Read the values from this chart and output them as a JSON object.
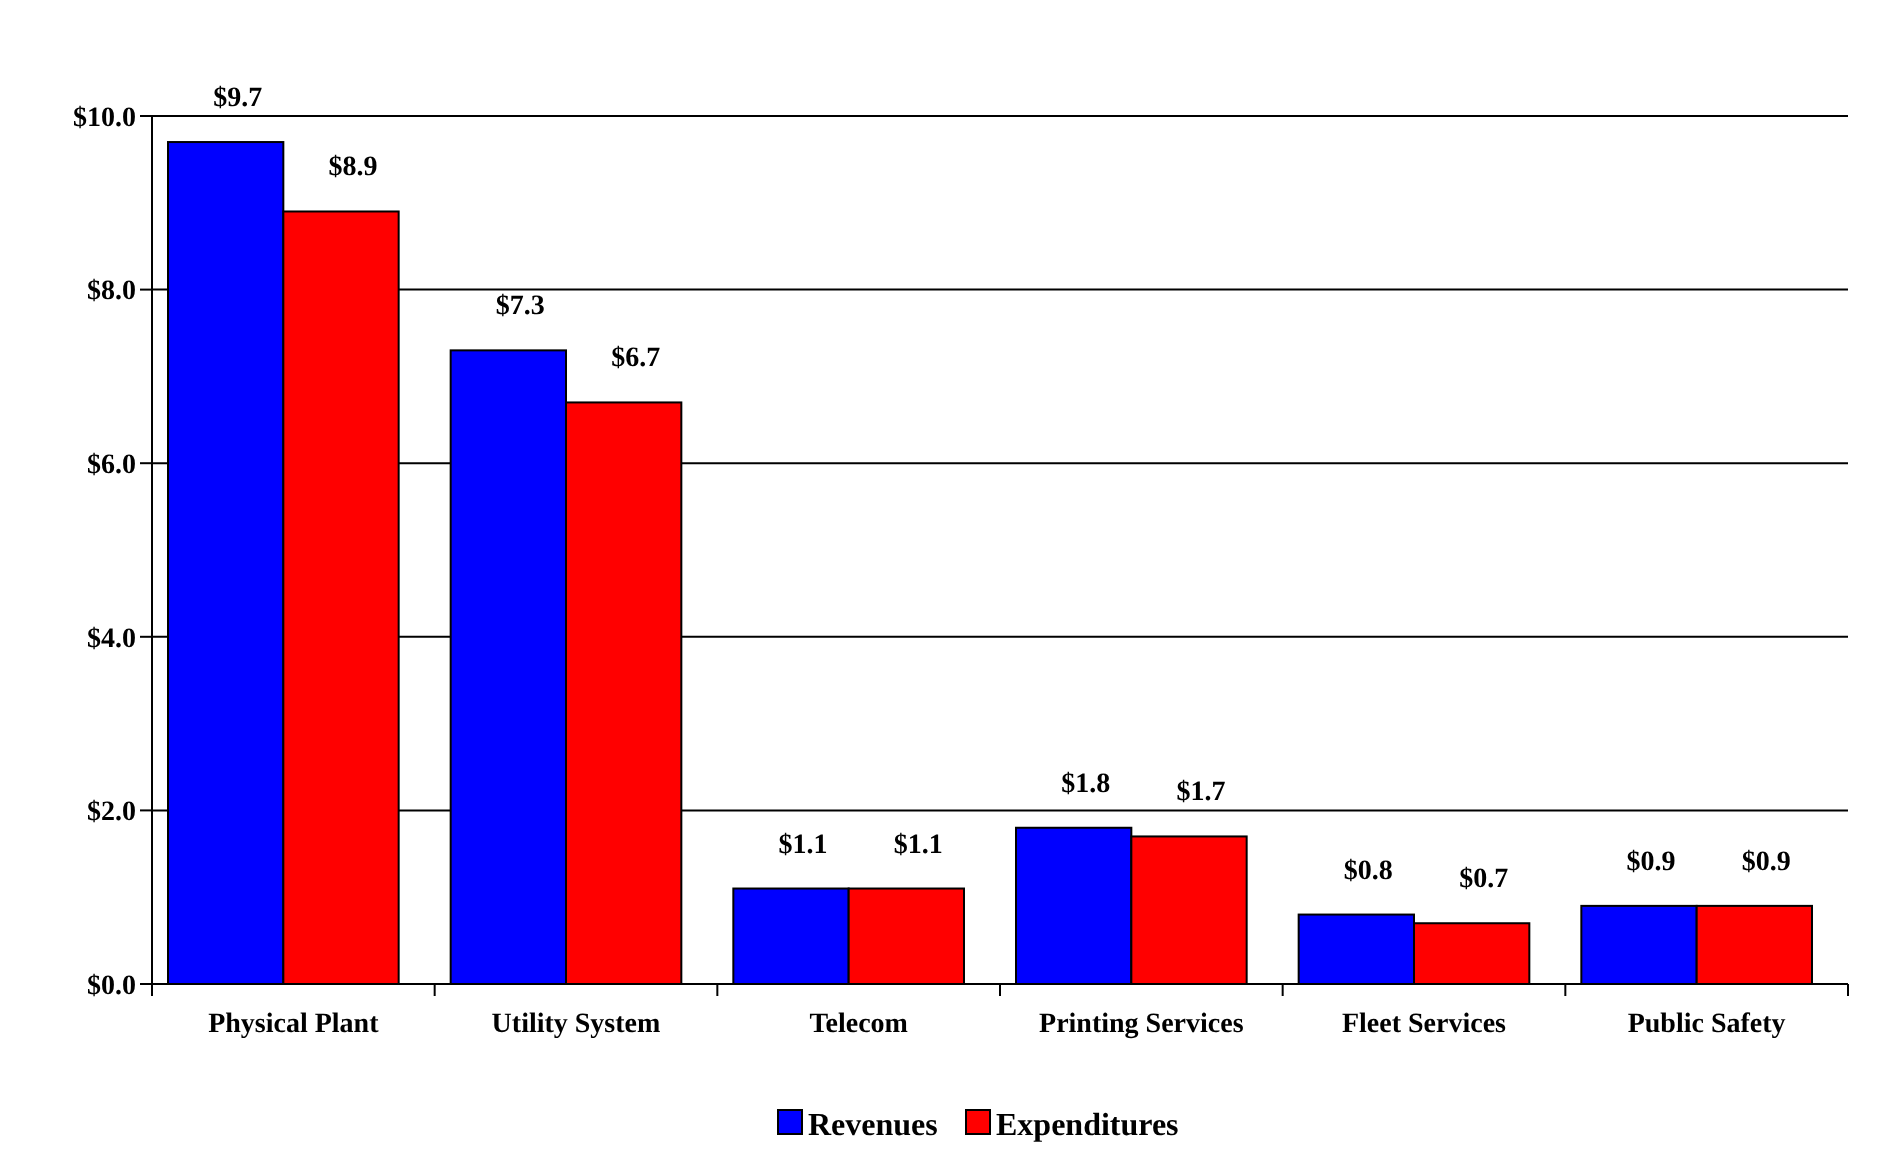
{
  "chart_data": {
    "type": "bar",
    "categories": [
      "Physical Plant",
      "Utility System",
      "Telecom",
      "Printing Services",
      "Fleet Services",
      "Public Safety"
    ],
    "series": [
      {
        "name": "Revenues",
        "color": "#0000ff",
        "values": [
          9.7,
          7.3,
          1.1,
          1.8,
          0.8,
          0.9
        ],
        "value_labels": [
          "$9.7",
          "$7.3",
          "$1.1",
          "$1.8",
          "$0.8",
          "$0.9"
        ]
      },
      {
        "name": "Expenditures",
        "color": "#ff0000",
        "values": [
          8.9,
          6.7,
          1.1,
          1.7,
          0.7,
          0.9
        ],
        "value_labels": [
          "$8.9",
          "$6.7",
          "$1.1",
          "$1.7",
          "$0.7",
          "$0.9"
        ]
      }
    ],
    "ylim": [
      0,
      10
    ],
    "yticks": [
      {
        "value": 0,
        "label": "$0.0"
      },
      {
        "value": 2,
        "label": "$2.0"
      },
      {
        "value": 4,
        "label": "$4.0"
      },
      {
        "value": 6,
        "label": "$6.0"
      },
      {
        "value": 8,
        "label": "$8.0"
      },
      {
        "value": 10,
        "label": "$10.0"
      }
    ],
    "grid": "y",
    "legend": "bottom"
  }
}
